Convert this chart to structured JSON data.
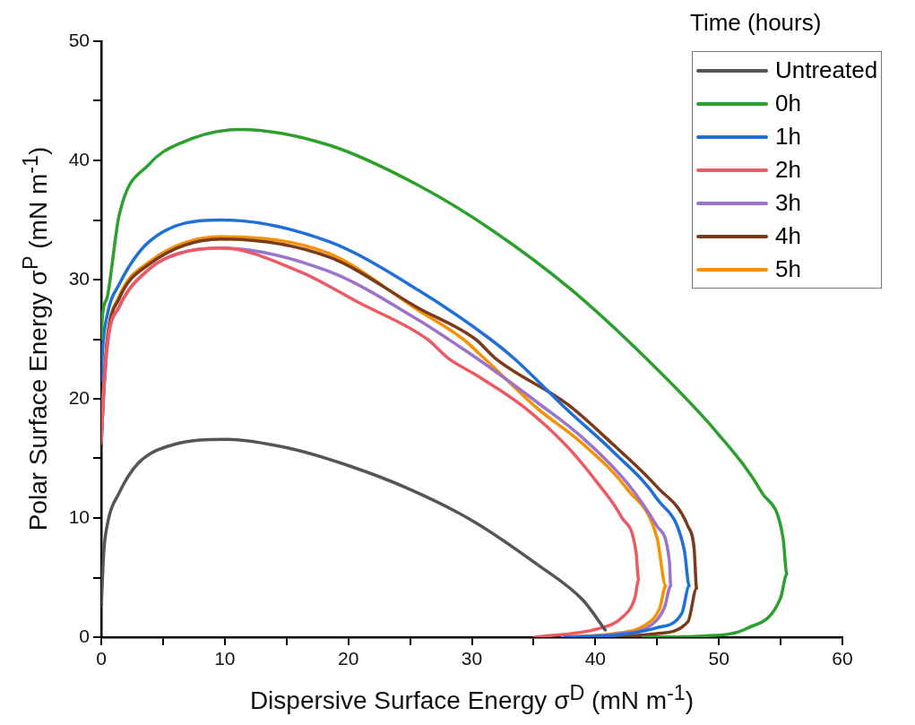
{
  "chart_data": {
    "type": "line",
    "xlabel": "Dispersive Surface Energy σ$^{D}$ (mN m$^{-1}$)",
    "ylabel": "Polar Surface Energy σ$^{P}$ (mN m$^{-1}$)",
    "legend_title": "Time (hours)",
    "legend": "top right",
    "marker": "none",
    "line_style": "solid",
    "xlim": [
      0,
      60
    ],
    "xticks": [
      0,
      {
        "value": 5,
        "label": null
      },
      10,
      {
        "value": 15,
        "label": null
      },
      20,
      {
        "value": 25,
        "label": null
      },
      30,
      {
        "value": 35,
        "label": null
      },
      40,
      {
        "value": 45,
        "label": null
      },
      50,
      {
        "value": 55,
        "label": null
      },
      60
    ],
    "ylim": [
      0,
      50
    ],
    "yticks": [
      0,
      {
        "value": 5,
        "label": null
      },
      10,
      {
        "value": 15,
        "label": null
      },
      20,
      {
        "value": 25,
        "label": null
      },
      30,
      {
        "value": 35,
        "label": null
      },
      40,
      {
        "value": 45,
        "label": null
      },
      50
    ],
    "series": [
      {
        "name": "Untreated",
        "color": "#555555",
        "x": [
          0,
          0.2,
          0.5,
          1.45,
          3,
          6,
          10,
          15,
          20,
          25,
          30,
          35.3,
          39,
          40.8
        ],
        "values": [
          2.6,
          7.1,
          9.5,
          12.1,
          14.6,
          16.2,
          16.6,
          15.9,
          14.4,
          12.4,
          9.8,
          6.1,
          3.1,
          0.6
        ]
      },
      {
        "name": "0h",
        "color": "#2ca02c",
        "x": [
          0,
          0.1,
          0.5,
          1.45,
          3.9,
          6.3,
          11.2,
          18.4,
          25.7,
          31.7,
          38,
          44.1,
          49.9,
          53.5,
          55.2,
          55.5,
          55,
          52.3,
          48.7,
          43.8
        ],
        "values": [
          25,
          27,
          28.6,
          35.4,
          39.7,
          41.4,
          42.6,
          41.3,
          37.9,
          34.1,
          29.2,
          23.4,
          17.1,
          12.1,
          8.3,
          5.3,
          3.3,
          0.75,
          0.1,
          0
        ]
      },
      {
        "name": "1h",
        "color": "#1f6fdb",
        "x": [
          0,
          0.1,
          0.5,
          1.45,
          3.9,
          9.7,
          18.4,
          25.7,
          31.5,
          33.4,
          37.8,
          41.4,
          45,
          47.2,
          47.6,
          47,
          45,
          42,
          37.5
        ],
        "values": [
          21.5,
          24,
          27.1,
          29.6,
          33.2,
          35,
          33.2,
          29.1,
          25,
          23.4,
          19,
          15.6,
          11.6,
          7.3,
          4.3,
          2,
          0.8,
          0.2,
          0
        ]
      },
      {
        "name": "2h",
        "color": "#ec5b63",
        "x": [
          0,
          0.15,
          0.5,
          1.45,
          3.9,
          6.3,
          9.7,
          16,
          20.8,
          26.4,
          28.1,
          30.5,
          34.1,
          37.8,
          40.2,
          42.1,
          43.3,
          43.5,
          43.2,
          42.1,
          40.2,
          35.1
        ],
        "values": [
          16.3,
          19.6,
          24.6,
          27.7,
          30.9,
          32.2,
          32.65,
          30.7,
          28.1,
          25,
          23.4,
          21.9,
          19.4,
          15.9,
          12.9,
          10.1,
          7.1,
          4.8,
          3.3,
          1.6,
          0.7,
          0
        ]
      },
      {
        "name": "3h",
        "color": "#9b73c8",
        "x": [
          0,
          0.15,
          0.5,
          1.45,
          3.9,
          6.3,
          9.7,
          18.4,
          25.7,
          28.1,
          30.4,
          35.3,
          39,
          42.6,
          45,
          46,
          46.1,
          45.6,
          44.5,
          42,
          37.3
        ],
        "values": [
          16.8,
          19.6,
          24.6,
          27.7,
          30.9,
          32.2,
          32.65,
          30.7,
          26.6,
          25,
          23.4,
          19.7,
          16.7,
          12.9,
          9.3,
          6.3,
          4.3,
          2.5,
          1,
          0.3,
          0
        ]
      },
      {
        "name": "4h",
        "color": "#7a3b1c",
        "x": [
          0,
          0.15,
          0.5,
          1.45,
          3.9,
          9.7,
          18.4,
          25.7,
          30.3,
          31.9,
          37.8,
          41.4,
          45,
          47.5,
          48,
          48.2,
          47.5,
          45,
          42,
          38
        ],
        "values": [
          16.1,
          19.8,
          25,
          28.4,
          31.3,
          33.4,
          31.9,
          27.6,
          25,
          23.4,
          19.5,
          16.2,
          12.6,
          9.3,
          7.4,
          4.1,
          1.3,
          0.3,
          0.05,
          0
        ]
      },
      {
        "name": "5h",
        "color": "#f79100",
        "x": [
          0,
          0.15,
          0.5,
          1.45,
          3.9,
          9.7,
          18.4,
          25.7,
          29.3,
          31,
          35.3,
          39,
          42.6,
          45,
          45.7,
          45.2,
          44,
          41.5,
          37.5
        ],
        "values": [
          17.5,
          20.5,
          25.2,
          28.6,
          31.5,
          33.6,
          32.2,
          27.4,
          25,
          23.4,
          19.2,
          16.2,
          12.4,
          8.3,
          4.3,
          2.4,
          1,
          0.3,
          0
        ]
      }
    ]
  }
}
